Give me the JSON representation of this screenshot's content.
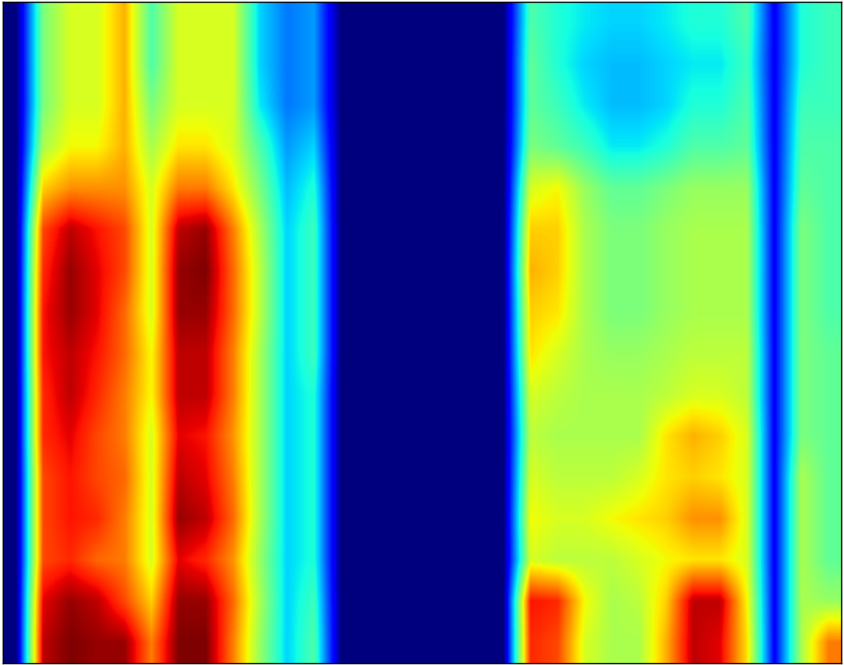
{
  "chart_data": {
    "type": "heatmap",
    "tick_labels": false,
    "cells": [
      [
        0,
        0.45,
        0.55,
        0.55,
        0.65,
        0.4,
        0.55,
        0.55,
        0.55,
        0.3,
        0.22,
        0.25,
        0,
        0,
        0,
        0,
        0,
        0,
        0,
        0.4,
        0.35,
        0.32,
        0.3,
        0.3,
        0.32,
        0.35,
        0.35,
        0.4,
        0.1,
        0.35,
        0.38
      ],
      [
        0,
        0.45,
        0.55,
        0.55,
        0.65,
        0.4,
        0.55,
        0.55,
        0.55,
        0.3,
        0.22,
        0.25,
        0,
        0,
        0,
        0,
        0,
        0,
        0,
        0.42,
        0.35,
        0.3,
        0.28,
        0.28,
        0.3,
        0.32,
        0.32,
        0.38,
        0.1,
        0.35,
        0.38
      ],
      [
        0,
        0.45,
        0.55,
        0.55,
        0.65,
        0.45,
        0.55,
        0.55,
        0.55,
        0.32,
        0.22,
        0.25,
        0,
        0,
        0,
        0,
        0,
        0,
        0,
        0.42,
        0.38,
        0.32,
        0.28,
        0.28,
        0.3,
        0.35,
        0.35,
        0.4,
        0.1,
        0.38,
        0.38
      ],
      [
        0,
        0.5,
        0.58,
        0.58,
        0.65,
        0.5,
        0.6,
        0.6,
        0.55,
        0.4,
        0.25,
        0.3,
        0,
        0,
        0,
        0,
        0,
        0,
        0,
        0.45,
        0.42,
        0.38,
        0.32,
        0.32,
        0.35,
        0.4,
        0.4,
        0.42,
        0.1,
        0.4,
        0.4
      ],
      [
        0,
        0.62,
        0.68,
        0.68,
        0.68,
        0.55,
        0.7,
        0.7,
        0.6,
        0.45,
        0.28,
        0.35,
        0,
        0,
        0,
        0,
        0,
        0,
        0,
        0.55,
        0.58,
        0.48,
        0.42,
        0.42,
        0.45,
        0.48,
        0.48,
        0.48,
        0.1,
        0.42,
        0.4
      ],
      [
        0,
        0.75,
        0.85,
        0.8,
        0.75,
        0.55,
        0.85,
        0.88,
        0.7,
        0.5,
        0.3,
        0.38,
        0,
        0,
        0,
        0,
        0,
        0,
        0,
        0.62,
        0.62,
        0.5,
        0.45,
        0.45,
        0.48,
        0.5,
        0.5,
        0.5,
        0.1,
        0.45,
        0.4
      ],
      [
        0,
        0.78,
        0.88,
        0.82,
        0.75,
        0.55,
        0.88,
        0.9,
        0.72,
        0.52,
        0.3,
        0.38,
        0,
        0,
        0,
        0,
        0,
        0,
        0,
        0.65,
        0.62,
        0.5,
        0.45,
        0.45,
        0.48,
        0.5,
        0.5,
        0.5,
        0.1,
        0.45,
        0.4
      ],
      [
        0,
        0.8,
        0.88,
        0.82,
        0.72,
        0.55,
        0.88,
        0.88,
        0.72,
        0.52,
        0.3,
        0.38,
        0,
        0,
        0,
        0,
        0,
        0,
        0,
        0.62,
        0.6,
        0.5,
        0.45,
        0.45,
        0.48,
        0.5,
        0.5,
        0.5,
        0.1,
        0.45,
        0.4
      ],
      [
        0,
        0.8,
        0.85,
        0.8,
        0.72,
        0.58,
        0.85,
        0.85,
        0.7,
        0.5,
        0.3,
        0.38,
        0,
        0,
        0,
        0,
        0,
        0,
        0,
        0.6,
        0.55,
        0.5,
        0.48,
        0.48,
        0.5,
        0.52,
        0.52,
        0.52,
        0.1,
        0.45,
        0.42
      ],
      [
        0,
        0.78,
        0.85,
        0.78,
        0.7,
        0.58,
        0.85,
        0.85,
        0.7,
        0.5,
        0.3,
        0.35,
        0,
        0,
        0,
        0,
        0,
        0,
        0,
        0.55,
        0.52,
        0.5,
        0.5,
        0.5,
        0.52,
        0.55,
        0.55,
        0.52,
        0.1,
        0.45,
        0.42
      ],
      [
        0,
        0.78,
        0.82,
        0.75,
        0.7,
        0.55,
        0.82,
        0.8,
        0.68,
        0.5,
        0.3,
        0.35,
        0,
        0,
        0,
        0,
        0,
        0,
        0,
        0.52,
        0.5,
        0.5,
        0.5,
        0.5,
        0.6,
        0.65,
        0.62,
        0.55,
        0.1,
        0.45,
        0.42
      ],
      [
        0,
        0.75,
        0.8,
        0.75,
        0.72,
        0.55,
        0.85,
        0.82,
        0.7,
        0.5,
        0.3,
        0.35,
        0,
        0,
        0,
        0,
        0,
        0,
        0,
        0.55,
        0.52,
        0.52,
        0.52,
        0.55,
        0.6,
        0.62,
        0.6,
        0.55,
        0.1,
        0.5,
        0.42
      ],
      [
        0,
        0.75,
        0.8,
        0.78,
        0.7,
        0.55,
        0.88,
        0.85,
        0.72,
        0.5,
        0.3,
        0.35,
        0,
        0,
        0,
        0,
        0,
        0,
        0,
        0.58,
        0.55,
        0.55,
        0.58,
        0.6,
        0.62,
        0.68,
        0.68,
        0.55,
        0.1,
        0.5,
        0.42
      ],
      [
        0,
        0.75,
        0.78,
        0.72,
        0.7,
        0.55,
        0.82,
        0.78,
        0.68,
        0.48,
        0.3,
        0.35,
        0,
        0,
        0,
        0,
        0,
        0,
        0,
        0.55,
        0.52,
        0.52,
        0.52,
        0.55,
        0.58,
        0.6,
        0.6,
        0.55,
        0.1,
        0.5,
        0.42
      ],
      [
        0,
        0.82,
        0.88,
        0.85,
        0.75,
        0.62,
        0.88,
        0.88,
        0.72,
        0.5,
        0.3,
        0.38,
        0,
        0,
        0,
        0,
        0,
        0,
        0,
        0.8,
        0.78,
        0.58,
        0.5,
        0.52,
        0.62,
        0.85,
        0.85,
        0.58,
        0.1,
        0.5,
        0.48
      ],
      [
        0,
        0.85,
        0.9,
        0.88,
        0.88,
        0.7,
        0.9,
        0.9,
        0.7,
        0.48,
        0.3,
        0.4,
        0,
        0,
        0,
        0,
        0,
        0,
        0,
        0.78,
        0.75,
        0.55,
        0.5,
        0.5,
        0.65,
        0.85,
        0.82,
        0.6,
        0.1,
        0.5,
        0.7
      ]
    ]
  }
}
